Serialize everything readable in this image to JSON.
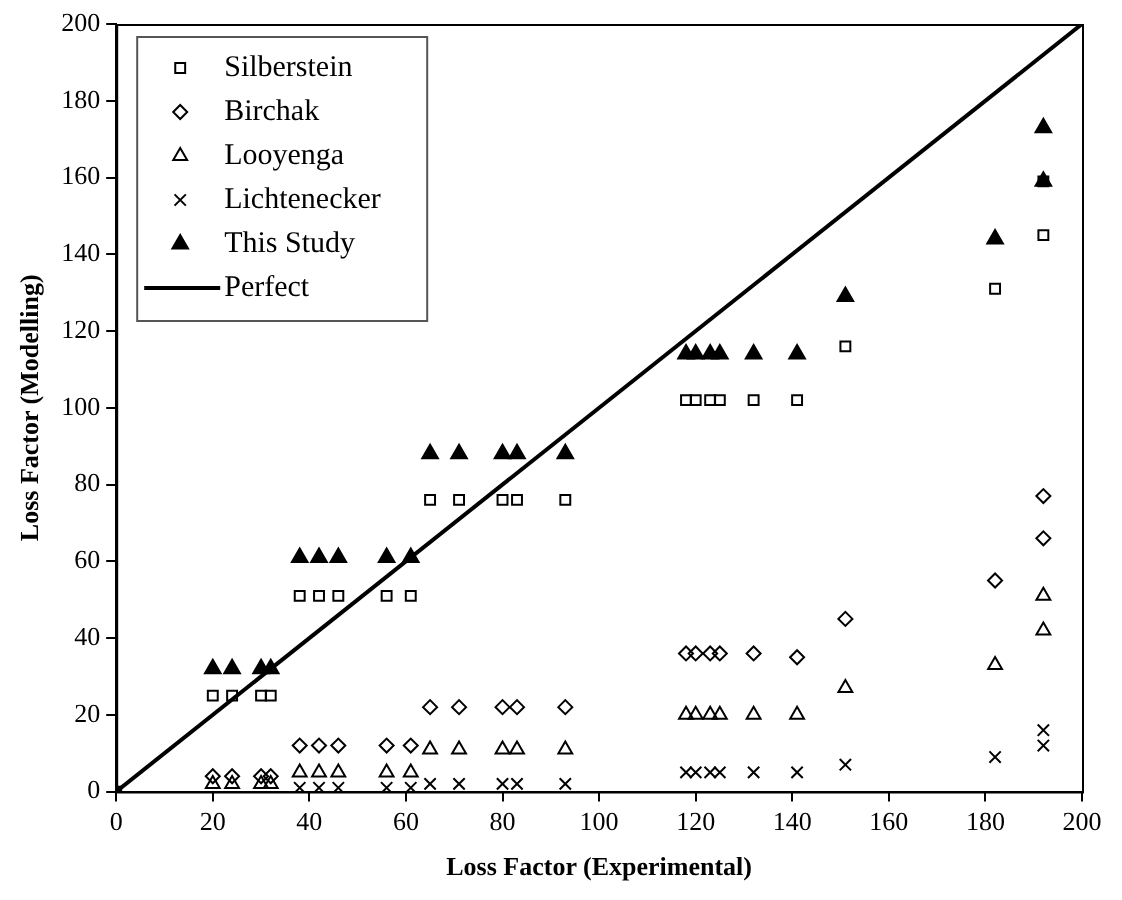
{
  "chart_data": {
    "type": "scatter",
    "xlabel": "Loss Factor (Experimental)",
    "ylabel": "Loss Factor (Modelling)",
    "x": [
      20,
      24,
      30,
      32,
      38,
      42,
      46,
      56,
      61,
      65,
      71,
      80,
      83,
      93,
      118,
      120,
      123,
      125,
      132,
      141,
      151,
      182,
      192,
      192
    ],
    "series": [
      {
        "name": "Silberstein",
        "color": "#000000",
        "marker": "square",
        "x": [
          0,
          20,
          24,
          30,
          32,
          38,
          42,
          46,
          56,
          61,
          65,
          71,
          80,
          83,
          93,
          118,
          120,
          123,
          125,
          132,
          141,
          151,
          182,
          192,
          192
        ],
        "values": [
          0,
          25,
          25,
          25,
          25,
          51,
          51,
          51,
          51,
          51,
          76,
          76,
          76,
          76,
          76,
          102,
          102,
          102,
          102,
          102,
          102,
          116,
          131,
          145,
          159
        ]
      },
      {
        "name": "Birchak",
        "color": "#000000",
        "marker": "diamond",
        "values": [
          4,
          4,
          4,
          4,
          12,
          12,
          12,
          12,
          12,
          22,
          22,
          22,
          22,
          22,
          36,
          36,
          36,
          36,
          36,
          35,
          45,
          55,
          66,
          77
        ]
      },
      {
        "name": "Looyenga",
        "color": "#000000",
        "marker": "triangle",
        "values": [
          2,
          2,
          2,
          2,
          5,
          5,
          5,
          5,
          5,
          11,
          11,
          11,
          11,
          11,
          20,
          20,
          20,
          20,
          20,
          20,
          27,
          33,
          42,
          51
        ]
      },
      {
        "name": "Lichtenecker",
        "color": "#000000",
        "marker": "cross",
        "values": [
          null,
          null,
          null,
          null,
          1,
          1,
          1,
          1,
          1,
          2,
          2,
          2,
          2,
          2,
          5,
          5,
          5,
          5,
          5,
          5,
          7,
          9,
          12,
          16
        ]
      },
      {
        "name": "This Study",
        "color": "#000000",
        "marker": "triangle",
        "values": [
          32,
          32,
          32,
          32,
          61,
          61,
          61,
          61,
          61,
          88,
          88,
          88,
          88,
          88,
          114,
          114,
          114,
          114,
          114,
          114,
          129,
          144,
          159,
          173
        ]
      },
      {
        "name": "Perfect",
        "type": "line",
        "color": "#000000",
        "marker": "none",
        "line_style": "solid",
        "x": [
          0,
          200
        ],
        "values": [
          0,
          200
        ]
      }
    ],
    "xlim": [
      0,
      200
    ],
    "xticks": [
      0,
      20,
      40,
      60,
      80,
      100,
      120,
      140,
      160,
      180,
      200
    ],
    "ylim": [
      0,
      200
    ],
    "yticks": [
      0,
      20,
      40,
      60,
      80,
      100,
      120,
      140,
      160,
      180,
      200
    ],
    "grid": false,
    "legend": "top left"
  }
}
